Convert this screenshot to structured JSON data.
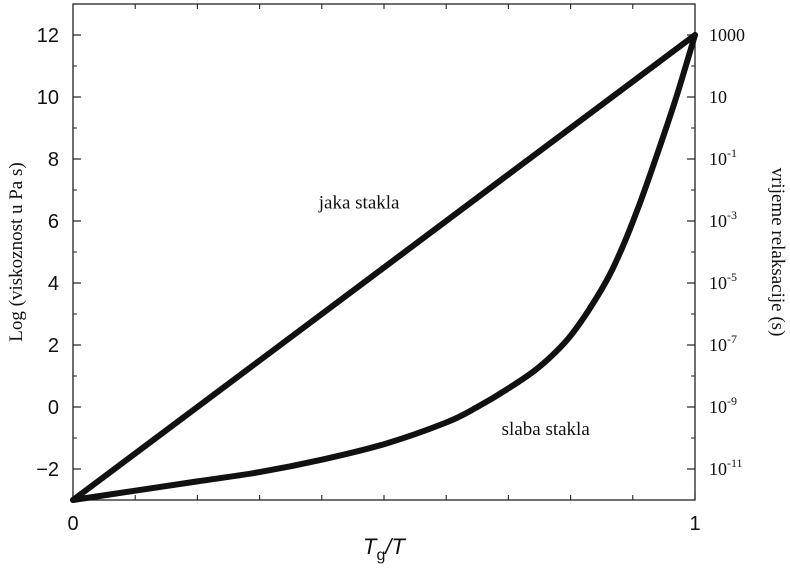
{
  "chart_data": {
    "type": "line",
    "title": "",
    "xlabel": {
      "main": "T",
      "sub": "g",
      "rest": "/T"
    },
    "ylabel": "Log (viskoznost u Pa s)",
    "y2label": "vrijeme relaksacije (s)",
    "xlim": [
      0,
      1
    ],
    "ylim": [
      -3,
      13
    ],
    "x_ticks": [
      "0",
      "1"
    ],
    "y_ticks": [
      -2,
      0,
      2,
      4,
      6,
      8,
      10,
      12
    ],
    "y_tick_labels": [
      "−2",
      "0",
      "2",
      "4",
      "6",
      "8",
      "10",
      "12"
    ],
    "y2_ticks": [
      {
        "value": 12,
        "base": "1000",
        "exp": ""
      },
      {
        "value": 10,
        "base": "10",
        "exp": ""
      },
      {
        "value": 8,
        "base": "10",
        "exp": "-1"
      },
      {
        "value": 6,
        "base": "10",
        "exp": "-3"
      },
      {
        "value": 4,
        "base": "10",
        "exp": "-5"
      },
      {
        "value": 2,
        "base": "10",
        "exp": "-7"
      },
      {
        "value": 0,
        "base": "10",
        "exp": "-9"
      },
      {
        "value": -2,
        "base": "10",
        "exp": "-11"
      }
    ],
    "grid": false,
    "series": [
      {
        "name": "jaka stakla",
        "x": [
          0,
          1
        ],
        "y": [
          -3,
          12
        ]
      },
      {
        "name": "slaba stakla",
        "x": [
          0,
          0.1,
          0.2,
          0.3,
          0.4,
          0.5,
          0.6,
          0.65,
          0.7,
          0.75,
          0.8,
          0.85,
          0.88,
          0.91,
          0.94,
          0.97,
          1.0
        ],
        "y": [
          -3,
          -2.7,
          -2.4,
          -2.1,
          -1.7,
          -1.2,
          -0.5,
          0.0,
          0.6,
          1.3,
          2.3,
          3.8,
          5.0,
          6.5,
          8.2,
          10.0,
          12.0
        ]
      }
    ],
    "annotations": [
      {
        "text": "jaka stakla",
        "x": 0.46,
        "y": 6.4
      },
      {
        "text": "slaba stakla",
        "x": 0.76,
        "y": -0.9
      }
    ]
  }
}
